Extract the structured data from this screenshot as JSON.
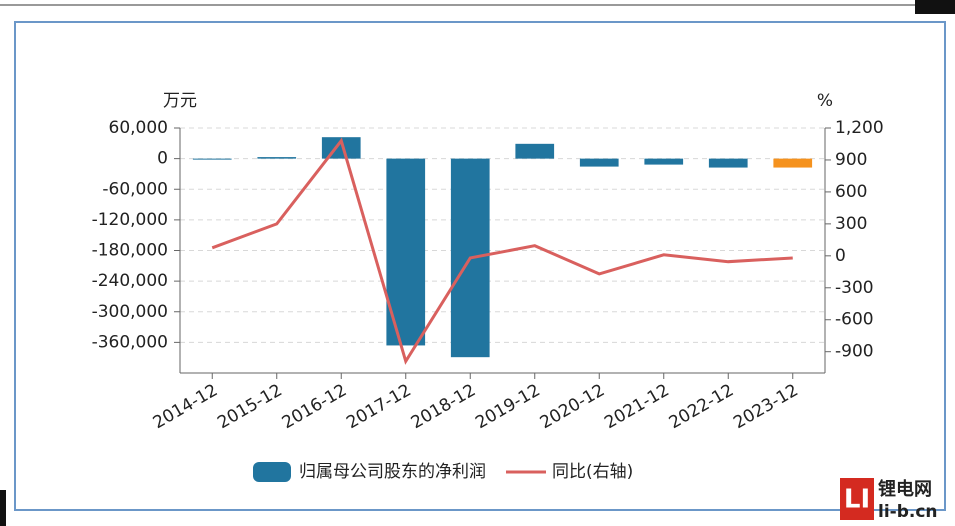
{
  "chart_data": {
    "type": "bar-line",
    "y_label": "万元",
    "y2_label": "%",
    "categories": [
      "2014-12",
      "2015-12",
      "2016-12",
      "2017-12",
      "2018-12",
      "2019-12",
      "2020-12",
      "2021-12",
      "2022-12",
      "2023-12"
    ],
    "series": [
      {
        "name": "归属母公司股东的净利润",
        "type": "bar",
        "color": "#21759f",
        "colors": [
          "#21759f",
          "#21759f",
          "#21759f",
          "#21759f",
          "#21759f",
          "#21759f",
          "#21759f",
          "#21759f",
          "#21759f",
          "#f5921e"
        ],
        "values": [
          -300,
          3000,
          42000,
          -366000,
          -389000,
          29000,
          -15600,
          -11700,
          -17500,
          -17500
        ]
      },
      {
        "name": "同比(右轴)",
        "type": "line",
        "axis": "y2",
        "color": "#d9605e",
        "values": [
          75,
          300,
          1080,
          -990,
          -20,
          95,
          -170,
          10,
          -55,
          -20
        ]
      }
    ],
    "ylim": [
      -420000,
      60000
    ],
    "yticks": [
      {
        "value": 60000,
        "label": "60,000"
      },
      0,
      {
        "value": -60000,
        "label": "-60,000"
      },
      {
        "value": -120000,
        "label": "-120,000"
      },
      {
        "value": -180000,
        "label": "-180,000"
      },
      {
        "value": -240000,
        "label": "-240,000"
      },
      {
        "value": -300000,
        "label": "-300,000"
      },
      {
        "value": -360000,
        "label": "-360,000"
      }
    ],
    "y2lim": [
      -1100,
      1200
    ],
    "y2ticks": [
      {
        "value": 1200,
        "label": "1,200"
      },
      900,
      600,
      300,
      0,
      -300,
      -600,
      -900
    ],
    "grid": true,
    "legend": "bottom"
  },
  "watermark": {
    "logo": "LI",
    "name": "锂电网",
    "site": "li-b.cn"
  }
}
